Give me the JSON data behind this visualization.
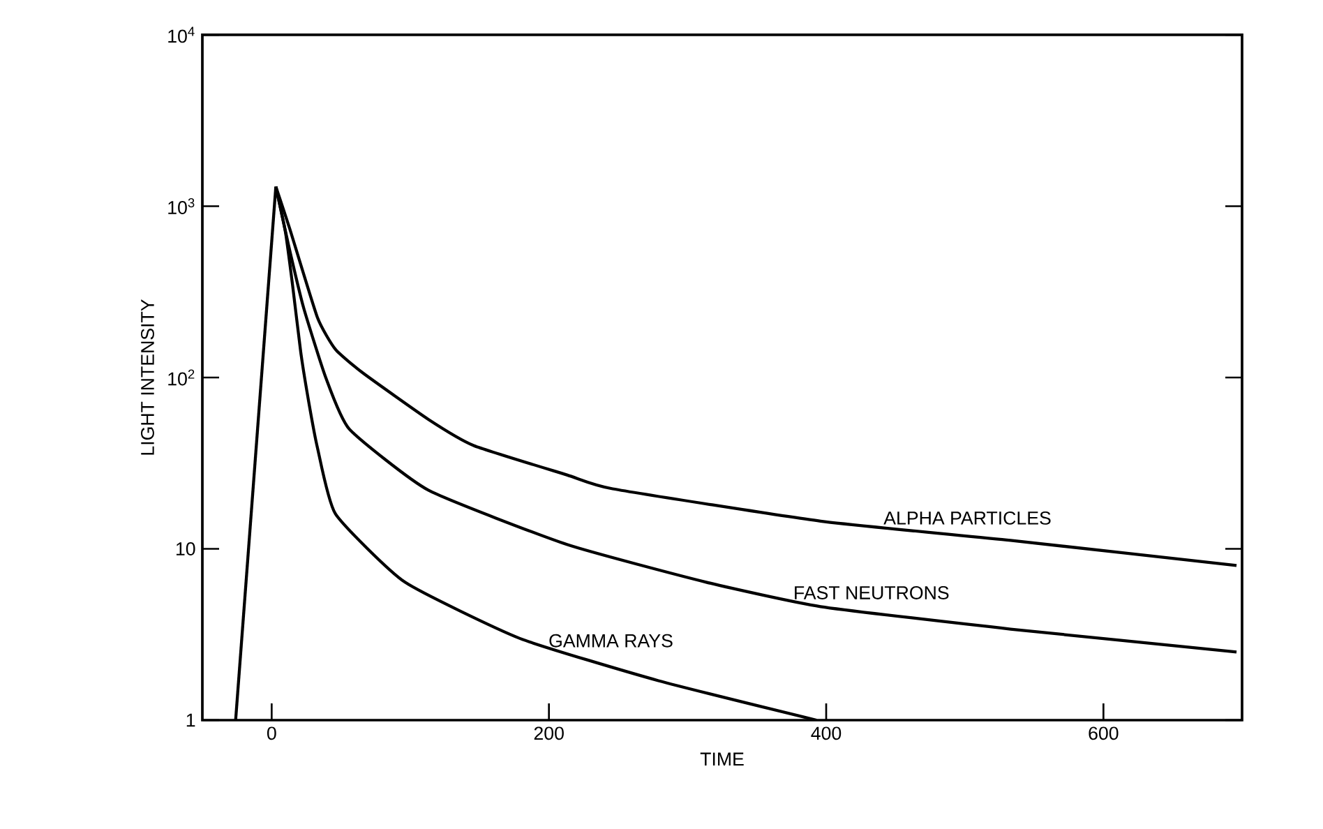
{
  "chart_data": {
    "type": "line",
    "xlabel": "TIME",
    "ylabel": "LIGHT INTENSITY",
    "log": "y",
    "xlim": [
      -50,
      700
    ],
    "ylim": [
      1,
      10000
    ],
    "xticks": [
      0,
      200,
      400,
      600
    ],
    "yticks": [
      1,
      10,
      {
        "value": 100,
        "label": "10$^{2}$"
      },
      {
        "value": 1000,
        "label": "10$^{3}$"
      },
      {
        "value": 10000,
        "label": "10$^{4}$"
      }
    ],
    "grid": false,
    "legend": false,
    "marker": "none",
    "line_style": "solid",
    "series": [
      {
        "color": "#000000",
        "x": [
          -26,
          3
        ],
        "values": [
          1,
          1300
        ]
      },
      {
        "name": "ALPHA PARTICLES",
        "color": "#000000",
        "x": [
          3,
          13,
          33,
          46,
          66,
          113,
          146,
          213,
          246,
          396,
          533,
          696
        ],
        "values": [
          1300,
          740,
          224,
          146,
          106,
          57,
          40,
          27,
          22.4,
          14.5,
          11.2,
          8
        ]
      },
      {
        "name": "FAST NEUTRONS",
        "color": "#000000",
        "x": [
          3,
          12,
          23,
          39,
          56,
          113,
          213,
          313,
          396,
          533,
          696
        ],
        "values": [
          1300,
          600,
          256,
          100,
          50,
          22,
          10.6,
          6.4,
          4.6,
          3.4,
          2.5
        ]
      },
      {
        "name": "GAMMA RAYS",
        "color": "#000000",
        "x": [
          3,
          10,
          15,
          21,
          27,
          33,
          46,
          96,
          179,
          279,
          393
        ],
        "values": [
          1300,
          700,
          350,
          140,
          70,
          39,
          16,
          6.4,
          3,
          1.7,
          1
        ]
      }
    ]
  }
}
